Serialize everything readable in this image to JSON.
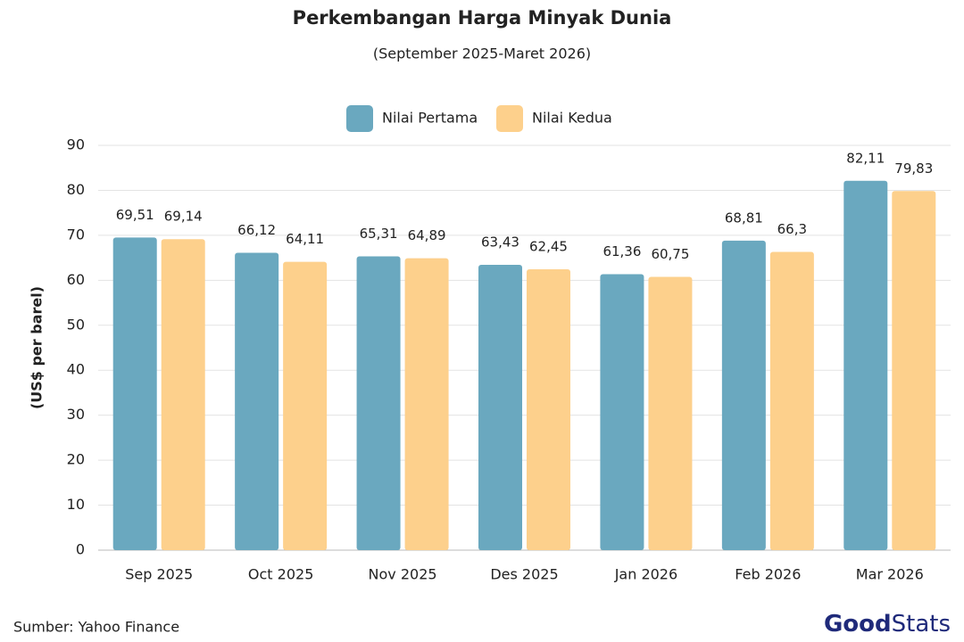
{
  "chart_data": {
    "type": "bar",
    "title": "Perkembangan Harga Minyak Dunia",
    "subtitle": "(September 2025-Maret 2026)",
    "y_label": "(US$ per barel)",
    "source": "Sumber: Yahoo Finance",
    "logo": [
      "Good",
      "Stats"
    ],
    "categories": [
      "Sep 2025",
      "Oct 2025",
      "Nov 2025",
      "Des 2025",
      "Jan 2026",
      "Feb 2026",
      "Mar 2026"
    ],
    "series": [
      {
        "name": "Nilai Pertama",
        "color": "#6aa8bf",
        "values": [
          69.51,
          66.12,
          65.31,
          63.43,
          61.36,
          68.81,
          82.11
        ],
        "value_labels": [
          "69,51",
          "66,12",
          "65,31",
          "63,43",
          "61,36",
          "68,81",
          "82,11"
        ]
      },
      {
        "name": "Nilai Kedua",
        "color": "#fdd08c",
        "values": [
          69.14,
          64.11,
          64.89,
          62.45,
          60.75,
          66.3,
          79.83
        ],
        "value_labels": [
          "69,14",
          "64,11",
          "64,89",
          "62,45",
          "60,75",
          "66,3",
          "79,83"
        ]
      }
    ],
    "ylim": [
      0,
      90
    ],
    "yticks": [
      0,
      10,
      20,
      30,
      40,
      50,
      60,
      70,
      80,
      90
    ],
    "grid": true,
    "legend": "top"
  }
}
